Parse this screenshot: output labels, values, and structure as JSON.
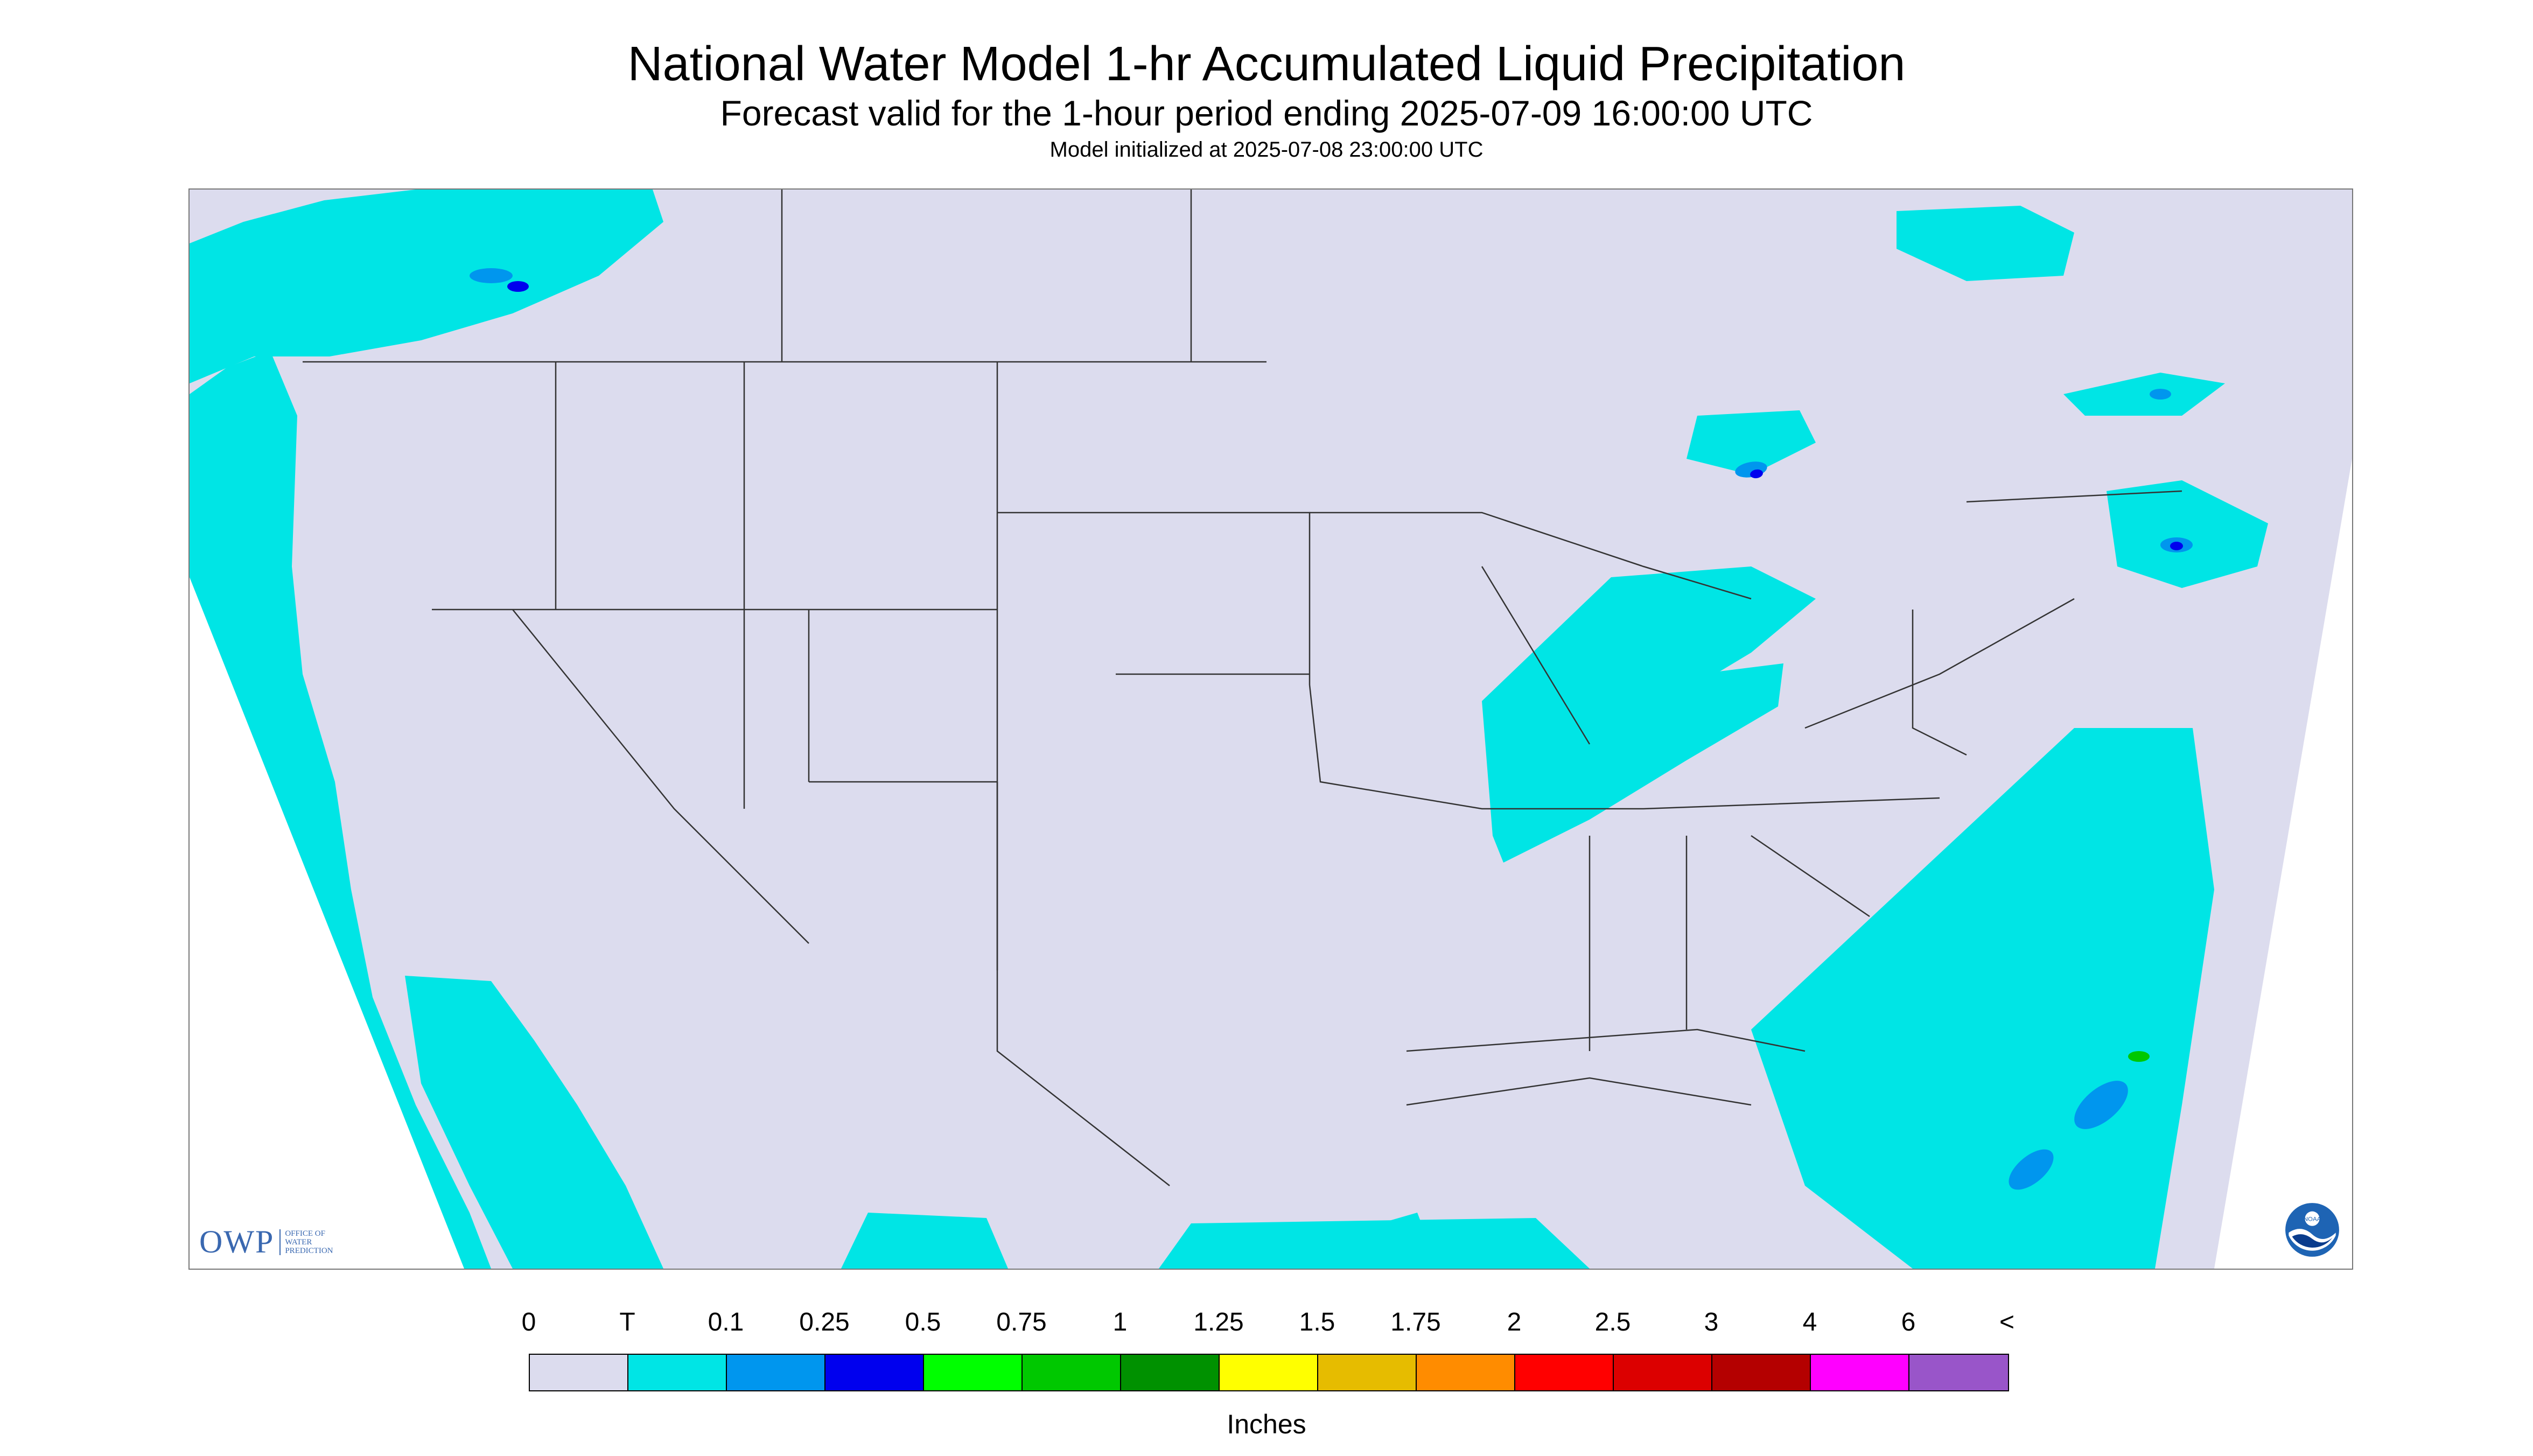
{
  "header": {
    "title": "National Water Model 1-hr Accumulated Liquid Precipitation",
    "subtitle": "Forecast valid for the 1-hour period ending 2025-07-09 16:00:00 UTC",
    "init_line": "Model initialized at 2025-07-08 23:00:00 UTC"
  },
  "logos": {
    "owp_letters": "OWP",
    "owp_sub": [
      "OFFICE OF",
      "WATER",
      "PREDICTION"
    ],
    "noaa_text": "NOAA"
  },
  "legend": {
    "tick_labels": [
      "0",
      "T",
      "0.1",
      "0.25",
      "0.5",
      "0.75",
      "1",
      "1.25",
      "1.5",
      "1.75",
      "2",
      "2.5",
      "3",
      "4",
      "6",
      "<"
    ],
    "colors": [
      "#dcdcee",
      "#00e5e5",
      "#0096ee",
      "#0000ee",
      "#00ff00",
      "#00c800",
      "#009100",
      "#ffff00",
      "#e6bc00",
      "#ff8c00",
      "#ff0000",
      "#dc0000",
      "#b40000",
      "#ff00ff",
      "#9955c9"
    ],
    "units": "Inches"
  },
  "map_colors": {
    "background": "#dcdcee",
    "outside": "#ffffff",
    "trace": "#00e5e5",
    "light": "#0096ee",
    "moderate": "#0000ee",
    "heavy": "#00c800",
    "boundary": "#333333"
  }
}
